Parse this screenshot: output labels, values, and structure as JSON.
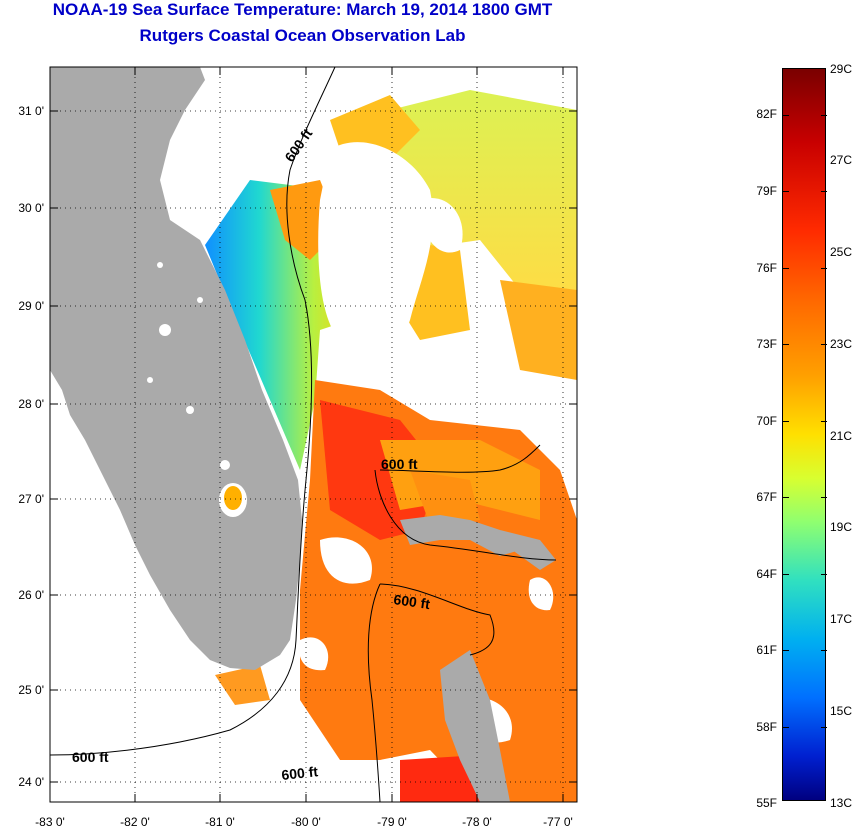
{
  "title_line1": "NOAA-19 Sea Surface Temperature:  March 19, 2014 1800 GMT",
  "title_line2": "Rutgers Coastal Ocean Observation Lab",
  "colors": {
    "title": "#0000c8",
    "land": "#aaaaaa",
    "cloud": "#ffffff"
  },
  "x_labels": [
    "-83 0'",
    "-82 0'",
    "-81 0'",
    "-80 0'",
    "-79 0'",
    "-78 0'",
    "-77 0'"
  ],
  "y_labels": [
    "31 0'",
    "30 0'",
    "29 0'",
    "28 0'",
    "27 0'",
    "26 0'",
    "25 0'",
    "24 0'"
  ],
  "contour_labels": [
    "600 ft",
    "600 ft",
    "600 ft",
    "600 ft"
  ],
  "colorbar": {
    "fahrenheit_labels": [
      "82F",
      "79F",
      "76F",
      "73F",
      "70F",
      "67F",
      "64F",
      "61F",
      "58F",
      "55F"
    ],
    "celsius_labels": [
      "29C",
      "27C",
      "25C",
      "23C",
      "21C",
      "19C",
      "17C",
      "15C",
      "13C"
    ]
  }
}
